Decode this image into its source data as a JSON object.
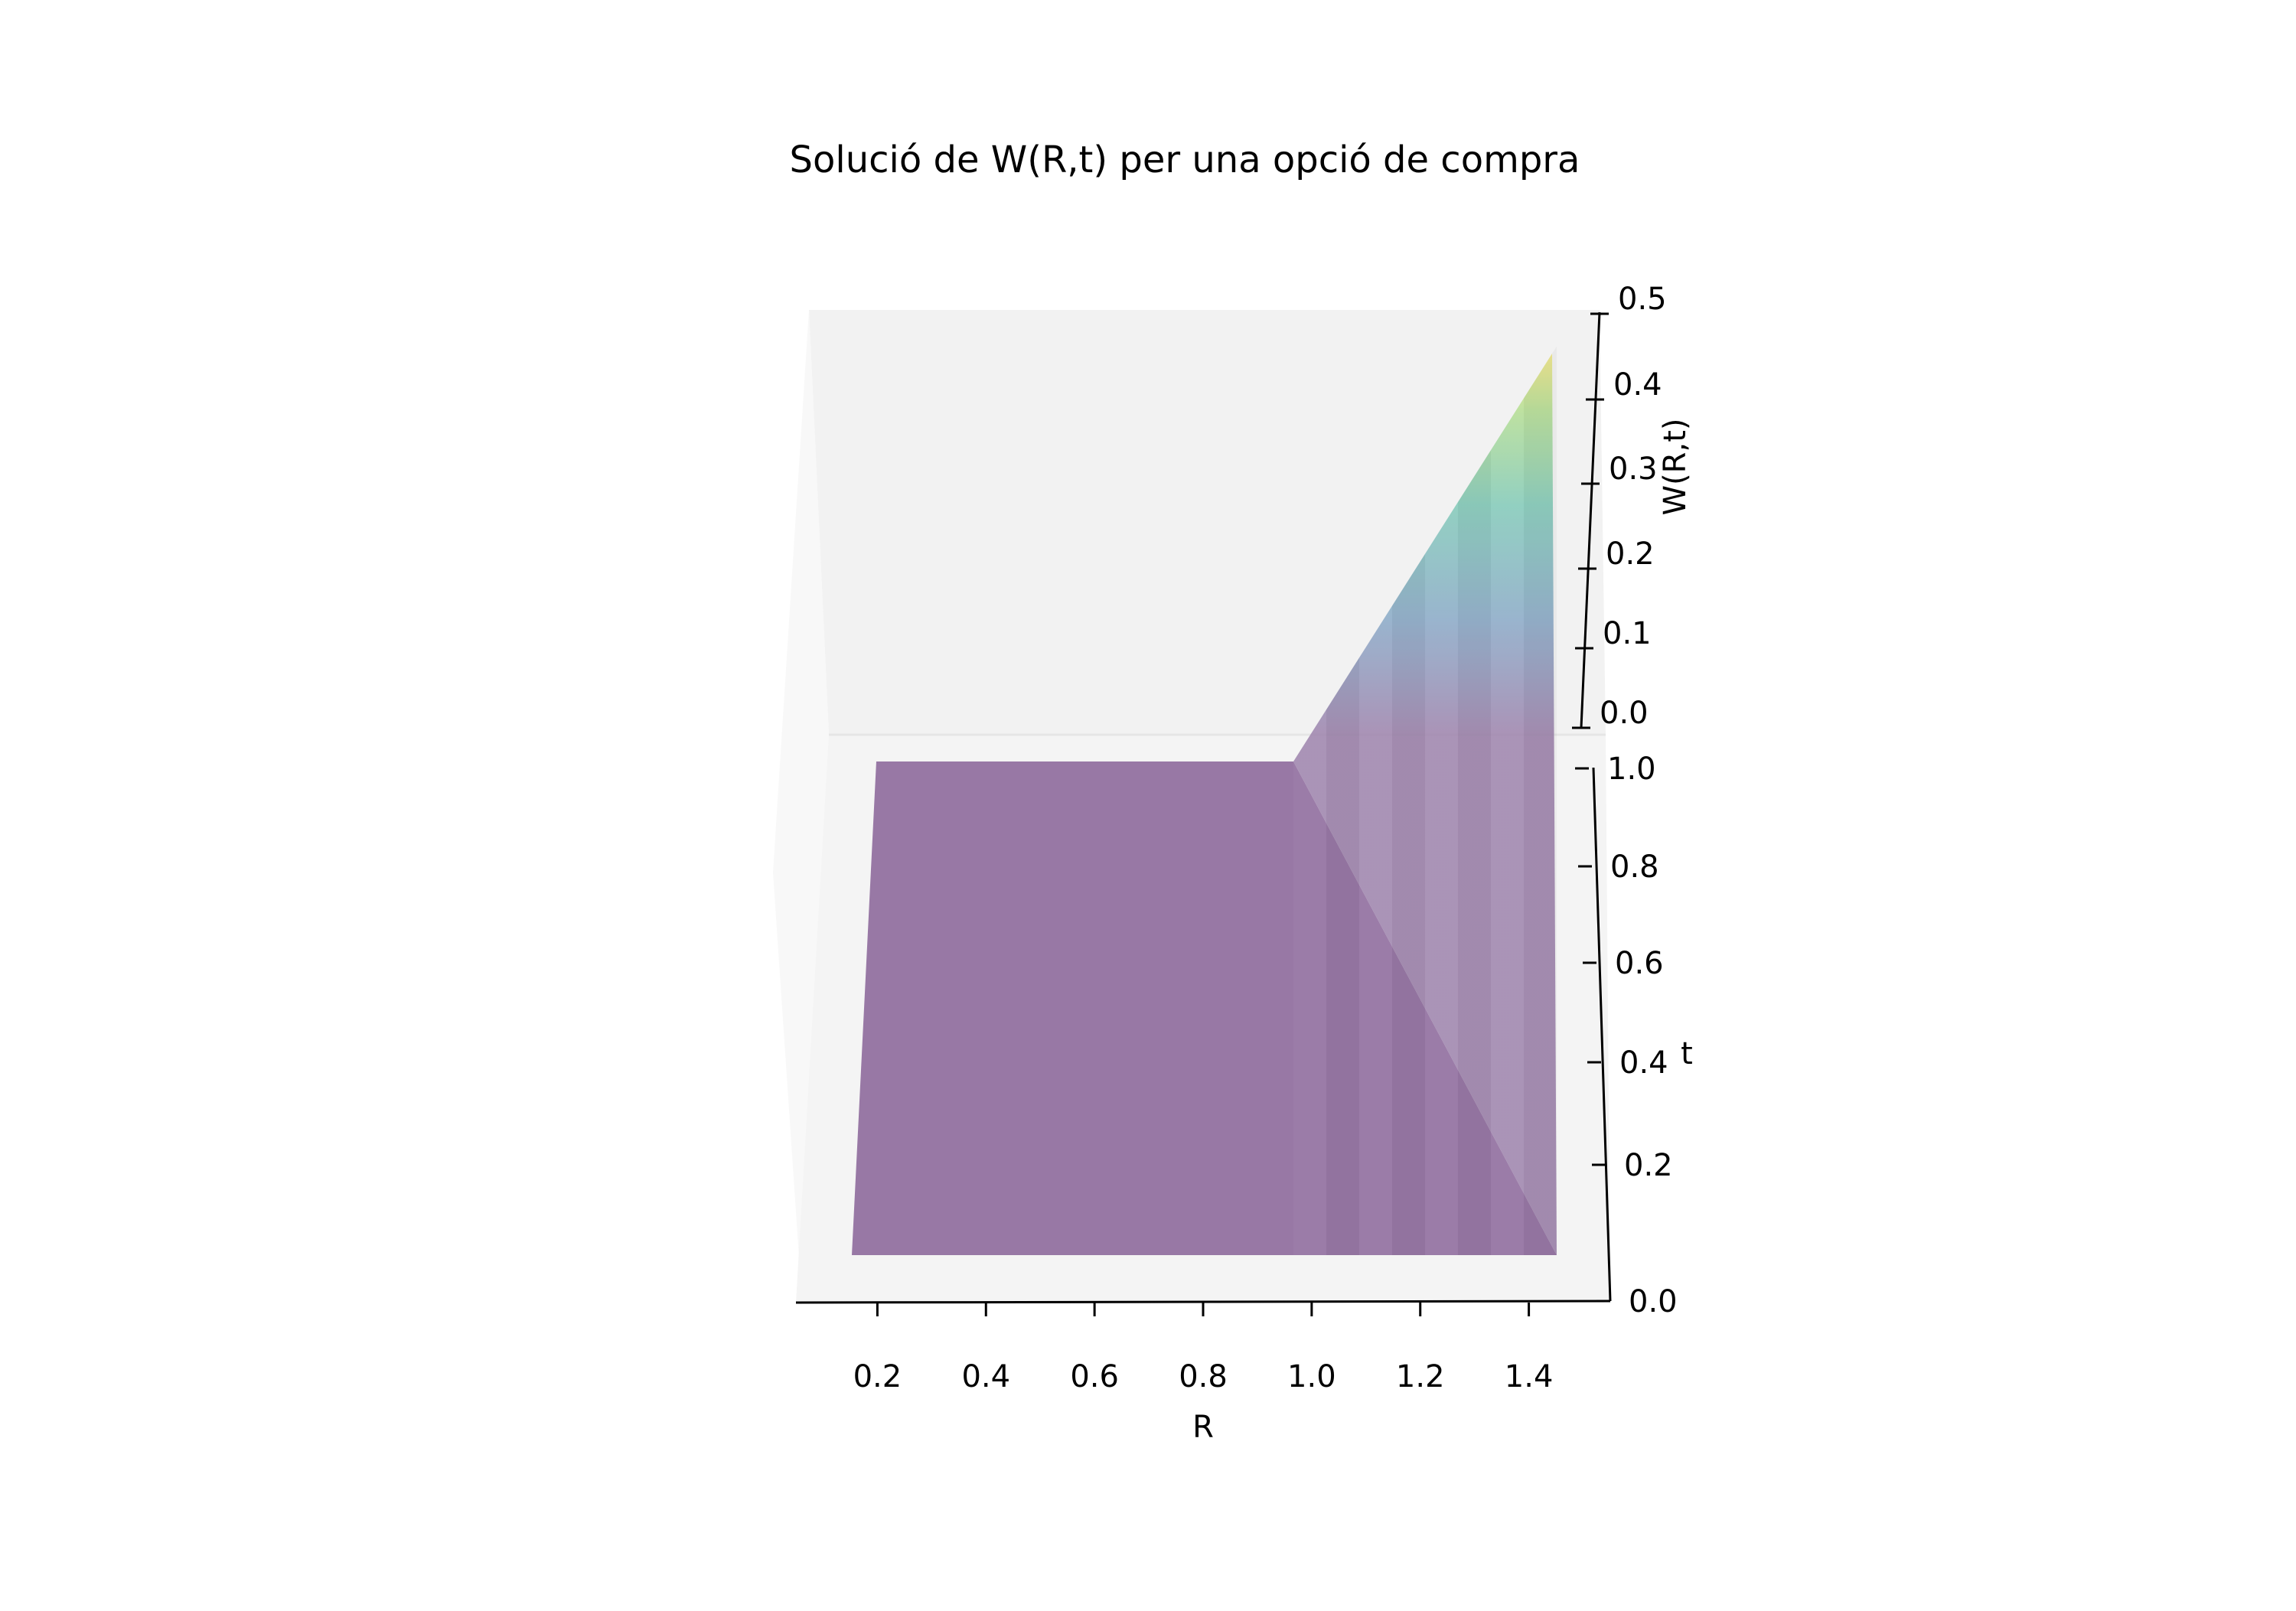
{
  "chart_data": {
    "type": "surface",
    "title": "Solució de W(R,t) per una opció de compra",
    "xlabel": "R",
    "ylabel": "t",
    "zlabel": "W(R,t)",
    "x_ticks": [
      "0.2",
      "0.4",
      "0.6",
      "0.8",
      "1.0",
      "1.2",
      "1.4"
    ],
    "y_ticks": [
      "0.0",
      "0.2",
      "0.4",
      "0.6",
      "0.8",
      "1.0"
    ],
    "z_ticks": [
      "0.0",
      "0.1",
      "0.2",
      "0.3",
      "0.4",
      "0.5"
    ],
    "xlim": [
      0.05,
      1.55
    ],
    "ylim": [
      0.0,
      1.0
    ],
    "zlim": [
      0.0,
      0.5
    ],
    "strike": 1.0,
    "R_range": [
      0.1,
      1.5
    ],
    "t_range": [
      0.0,
      1.0
    ],
    "max_value": 0.5,
    "colormap": "viridis",
    "surface_color": "#8e6a9c",
    "pane_color": "#f2f2f2",
    "grid": false
  }
}
